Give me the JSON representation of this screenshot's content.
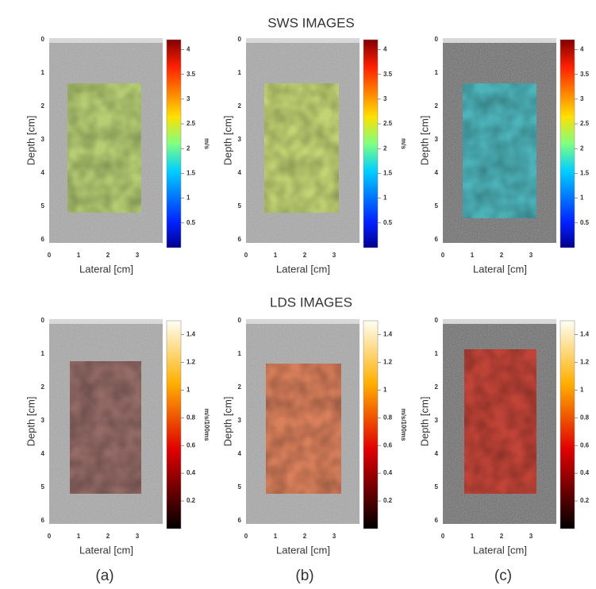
{
  "sections": [
    {
      "title": "SWS IMAGES",
      "colorbar": {
        "unit": "m/s",
        "range": [
          0,
          4.2
        ],
        "ticks": [
          0.5,
          1,
          1.5,
          2,
          2.5,
          3,
          3.5,
          4
        ]
      }
    },
    {
      "title": "LDS IMAGES",
      "colorbar": {
        "unit": "m/s/100ms",
        "range": [
          0,
          1.5
        ],
        "ticks": [
          0.2,
          0.4,
          0.6,
          0.8,
          1,
          1.2,
          1.4
        ]
      }
    }
  ],
  "axes": {
    "depth_label": "Depth [cm]",
    "lateral_label": "Lateral [cm]",
    "depth_ticks": [
      0,
      1,
      2,
      3,
      4,
      5,
      6
    ],
    "lateral_ticks": [
      0,
      1,
      2,
      3
    ]
  },
  "panel_labels": [
    "(a)",
    "(b)",
    "(c)"
  ]
}
